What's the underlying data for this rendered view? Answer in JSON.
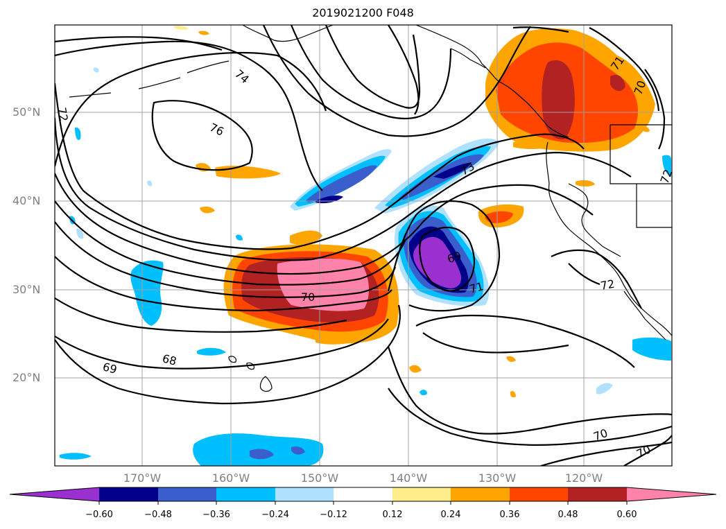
{
  "title": "2019021200 F048",
  "lat_labels": [
    "50°N",
    "40°N",
    "30°N",
    "20°N"
  ],
  "lon_labels": [
    "170°W",
    "160°W",
    "150°W",
    "140°W",
    "130°W",
    "120°W"
  ],
  "colorbar": {
    "ticks": [
      "−0.60",
      "−0.48",
      "−0.36",
      "−0.24",
      "−0.12",
      "0.12",
      "0.24",
      "0.36",
      "0.48",
      "0.60"
    ],
    "colors": [
      "#9b30d0",
      "#00008b",
      "#3a5fcd",
      "#00bfff",
      "#b0e2ff",
      "#ffffff",
      "#ffec8b",
      "#ffa500",
      "#ff4500",
      "#b22222",
      "#ff82ab"
    ]
  },
  "contour_labels": [
    "74",
    "76",
    "72",
    "73",
    "69",
    "71",
    "70",
    "72",
    "68",
    "69",
    "70",
    "70",
    "71",
    "70",
    "72"
  ]
}
